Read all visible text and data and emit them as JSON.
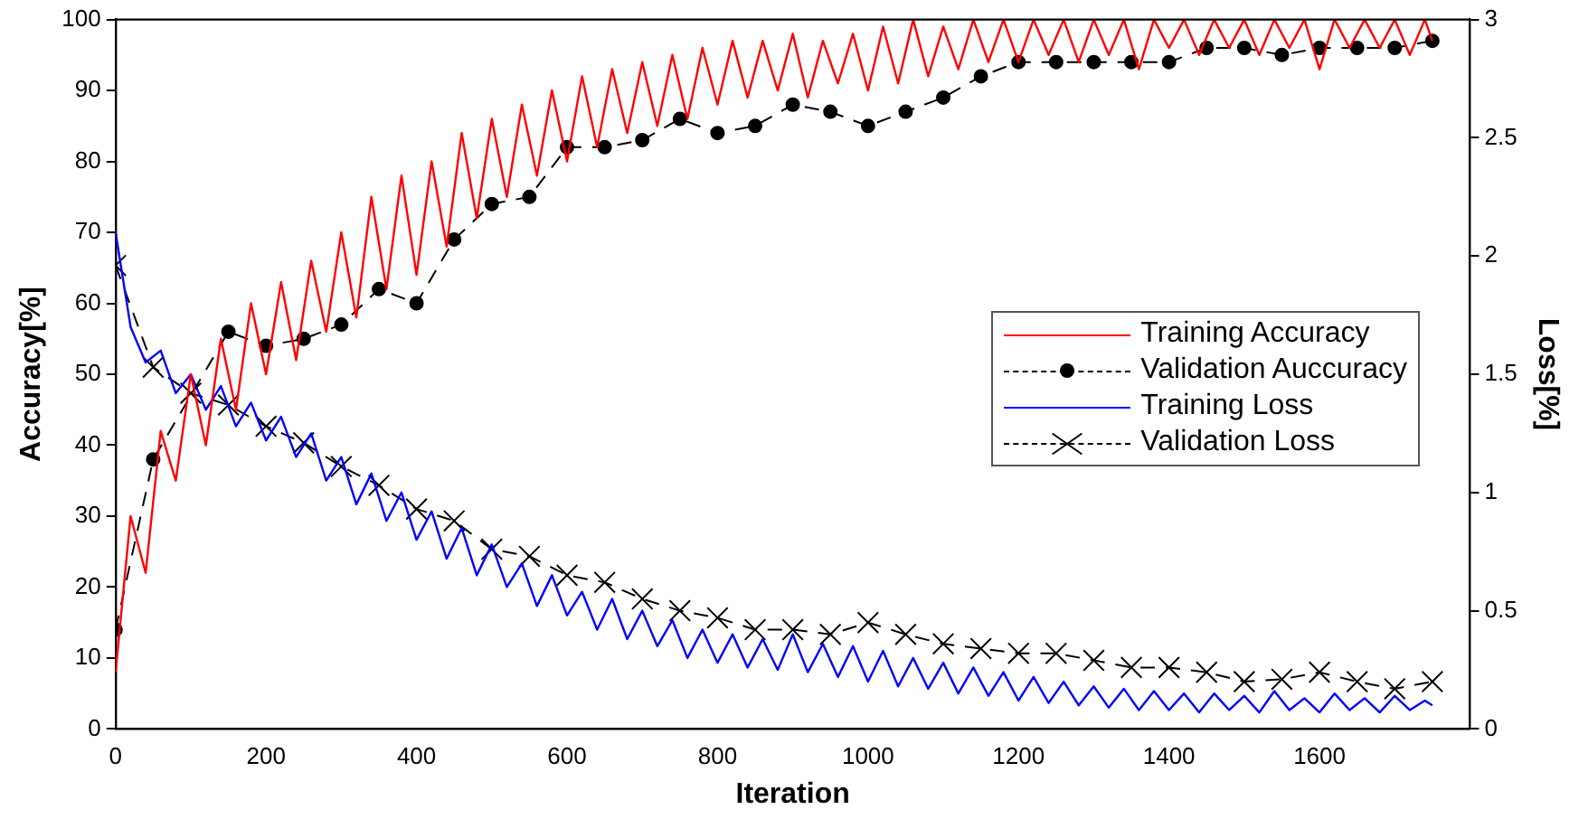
{
  "chart_data": {
    "type": "line",
    "xlabel": "Iteration",
    "ylabel": "Accuracy[%]",
    "y2label": "Loss[%]",
    "xlim": [
      0,
      1800
    ],
    "xticks": [
      0,
      200,
      400,
      600,
      800,
      1000,
      1200,
      1400,
      1600
    ],
    "ylim": [
      0,
      100
    ],
    "yticks": [
      0,
      10,
      20,
      30,
      40,
      50,
      60,
      70,
      80,
      90,
      100
    ],
    "y2lim": [
      0,
      3
    ],
    "y2ticks": [
      0,
      0.5,
      1,
      1.5,
      2,
      2.5,
      3
    ],
    "grid": false,
    "legend": "right",
    "series": [
      {
        "name": "Training Accuracy",
        "color": "#ff0000",
        "marker": "none",
        "line_style": "solid",
        "x": [
          0,
          20,
          40,
          60,
          80,
          100,
          120,
          140,
          160,
          180,
          200,
          220,
          240,
          260,
          280,
          300,
          320,
          340,
          360,
          380,
          400,
          420,
          440,
          460,
          480,
          500,
          520,
          540,
          560,
          580,
          600,
          620,
          640,
          660,
          680,
          700,
          720,
          740,
          760,
          780,
          800,
          820,
          840,
          860,
          880,
          900,
          920,
          940,
          960,
          980,
          1000,
          1020,
          1040,
          1060,
          1080,
          1100,
          1120,
          1140,
          1160,
          1180,
          1200,
          1220,
          1240,
          1260,
          1280,
          1300,
          1320,
          1340,
          1360,
          1380,
          1400,
          1420,
          1440,
          1460,
          1480,
          1500,
          1520,
          1540,
          1560,
          1580,
          1600,
          1620,
          1640,
          1660,
          1680,
          1700,
          1720,
          1740,
          1750
        ],
        "values": [
          8,
          30,
          22,
          42,
          35,
          50,
          40,
          55,
          45,
          60,
          50,
          63,
          52,
          66,
          56,
          70,
          58,
          75,
          62,
          78,
          64,
          80,
          68,
          84,
          72,
          86,
          75,
          88,
          78,
          90,
          80,
          92,
          82,
          93,
          84,
          94,
          85,
          95,
          86,
          96,
          88,
          97,
          89,
          97,
          90,
          98,
          89,
          97,
          91,
          98,
          90,
          99,
          91,
          100,
          92,
          99,
          93,
          100,
          94,
          100,
          94,
          100,
          95,
          100,
          94,
          100,
          95,
          100,
          93,
          100,
          96,
          100,
          95,
          100,
          96,
          100,
          95,
          100,
          96,
          100,
          93,
          100,
          96,
          100,
          96,
          100,
          95,
          100,
          97
        ]
      },
      {
        "name": "Validation Auccuracy",
        "color": "#000000",
        "marker": "circle",
        "line_style": "dashed",
        "x": [
          0,
          50,
          150,
          200,
          250,
          300,
          350,
          400,
          450,
          500,
          550,
          600,
          650,
          700,
          750,
          800,
          850,
          900,
          950,
          1000,
          1050,
          1100,
          1150,
          1200,
          1250,
          1300,
          1350,
          1400,
          1450,
          1500,
          1550,
          1600,
          1650,
          1700,
          1750
        ],
        "values": [
          14,
          38,
          56,
          54,
          55,
          57,
          62,
          60,
          69,
          74,
          75,
          82,
          82,
          83,
          86,
          84,
          85,
          88,
          87,
          85,
          87,
          89,
          92,
          94,
          94,
          94,
          94,
          94,
          96,
          96,
          95,
          96,
          96,
          96,
          97
        ]
      },
      {
        "name": "Training Loss",
        "color": "#0000ff",
        "marker": "none",
        "line_style": "solid",
        "axis": "y2",
        "x": [
          0,
          20,
          40,
          60,
          80,
          100,
          120,
          140,
          160,
          180,
          200,
          220,
          240,
          260,
          280,
          300,
          320,
          340,
          360,
          380,
          400,
          420,
          440,
          460,
          480,
          500,
          520,
          540,
          560,
          580,
          600,
          620,
          640,
          660,
          680,
          700,
          720,
          740,
          760,
          780,
          800,
          820,
          840,
          860,
          880,
          900,
          920,
          940,
          960,
          980,
          1000,
          1020,
          1040,
          1060,
          1080,
          1100,
          1120,
          1140,
          1160,
          1180,
          1200,
          1220,
          1240,
          1260,
          1280,
          1300,
          1320,
          1340,
          1360,
          1380,
          1400,
          1420,
          1440,
          1460,
          1480,
          1500,
          1520,
          1540,
          1560,
          1580,
          1600,
          1620,
          1640,
          1660,
          1680,
          1700,
          1720,
          1740,
          1750
        ],
        "values": [
          2.1,
          1.7,
          1.55,
          1.6,
          1.42,
          1.5,
          1.35,
          1.45,
          1.28,
          1.38,
          1.22,
          1.32,
          1.15,
          1.25,
          1.05,
          1.15,
          0.95,
          1.08,
          0.88,
          1.0,
          0.8,
          0.92,
          0.72,
          0.85,
          0.65,
          0.78,
          0.6,
          0.7,
          0.52,
          0.65,
          0.48,
          0.58,
          0.42,
          0.55,
          0.38,
          0.5,
          0.35,
          0.46,
          0.3,
          0.42,
          0.28,
          0.4,
          0.26,
          0.38,
          0.25,
          0.4,
          0.24,
          0.36,
          0.22,
          0.35,
          0.2,
          0.33,
          0.18,
          0.3,
          0.17,
          0.28,
          0.15,
          0.26,
          0.14,
          0.24,
          0.12,
          0.22,
          0.11,
          0.2,
          0.1,
          0.18,
          0.09,
          0.17,
          0.08,
          0.16,
          0.08,
          0.15,
          0.07,
          0.15,
          0.08,
          0.14,
          0.07,
          0.16,
          0.08,
          0.13,
          0.07,
          0.15,
          0.08,
          0.13,
          0.07,
          0.14,
          0.08,
          0.12,
          0.1
        ]
      },
      {
        "name": "Validation Loss",
        "color": "#000000",
        "marker": "cross",
        "line_style": "dashed",
        "axis": "y2",
        "x": [
          0,
          50,
          100,
          150,
          200,
          250,
          300,
          350,
          400,
          450,
          500,
          550,
          600,
          650,
          700,
          750,
          800,
          850,
          900,
          950,
          1000,
          1050,
          1100,
          1150,
          1200,
          1250,
          1300,
          1350,
          1400,
          1450,
          1500,
          1550,
          1600,
          1650,
          1700,
          1750
        ],
        "values": [
          1.96,
          1.53,
          1.42,
          1.37,
          1.28,
          1.21,
          1.11,
          1.03,
          0.93,
          0.88,
          0.76,
          0.73,
          0.65,
          0.62,
          0.55,
          0.5,
          0.47,
          0.42,
          0.42,
          0.4,
          0.45,
          0.4,
          0.36,
          0.34,
          0.32,
          0.32,
          0.29,
          0.26,
          0.26,
          0.24,
          0.2,
          0.21,
          0.24,
          0.2,
          0.17,
          0.2
        ]
      }
    ]
  }
}
